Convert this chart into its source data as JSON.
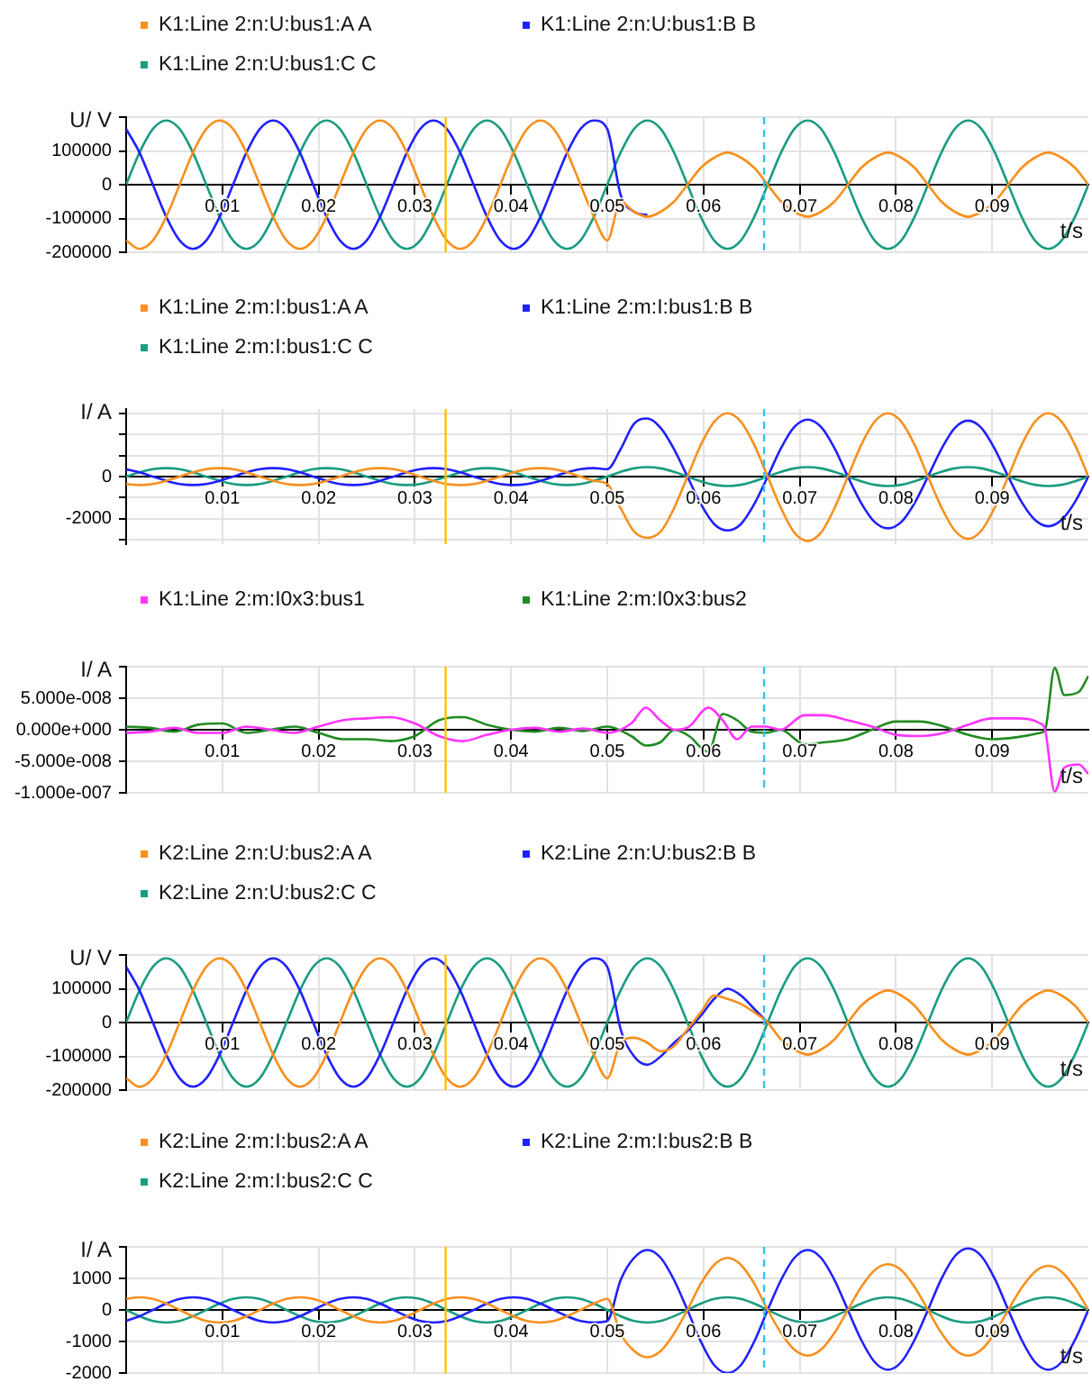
{
  "chart_data": [
    {
      "type": "line",
      "xlabel": "t/s",
      "ylabel": "U/ V",
      "legend": "top left",
      "grid": true,
      "marker": "none",
      "xlim": [
        0,
        0.1
      ],
      "xticks": [
        0.01,
        0.02,
        0.03,
        0.04,
        0.05,
        0.06,
        0.07,
        0.08,
        0.09
      ],
      "ylim": [
        -200000,
        200000
      ],
      "yticks": [
        -200000,
        -100000,
        0,
        100000,
        {
          "value": 200000,
          "label": null
        }
      ],
      "ref_lines": [
        {
          "axis": "x",
          "value": 0.0332,
          "color": "#ffc000"
        },
        {
          "axis": "x",
          "value": 0.0663,
          "color": "#33c3f0",
          "line_style": "dashed"
        }
      ],
      "x": [
        0,
        0.00139,
        0.00278,
        0.00417,
        0.00556,
        0.00694,
        0.00833,
        0.00972,
        0.01111,
        0.0125,
        0.01389,
        0.01528,
        0.01667,
        0.01806,
        0.01944,
        0.02083,
        0.02222,
        0.02361,
        0.025,
        0.02639,
        0.02778,
        0.02917,
        0.03056,
        0.03194,
        0.03333,
        0.03472,
        0.03611,
        0.0375,
        0.03889,
        0.04028,
        0.04167,
        0.04306,
        0.04444,
        0.04583,
        0.04722,
        0.04861,
        0.05,
        0.05139,
        0.05278,
        0.05417,
        0.05556,
        0.05694,
        0.05833,
        0.05972,
        0.06111,
        0.0625,
        0.06389,
        0.06528,
        0.06667,
        0.06806,
        0.06944,
        0.07083,
        0.07222,
        0.07361,
        0.075,
        0.07639,
        0.07778,
        0.07917,
        0.08056,
        0.08194,
        0.08333,
        0.08472,
        0.08611,
        0.0875,
        0.08889,
        0.09028,
        0.09167,
        0.09306,
        0.09444,
        0.09583,
        0.09722,
        0.09861,
        0.1
      ],
      "series": [
        {
          "name": "K1:Line 2:n:U:bus1:A A",
          "color": "#f7901e",
          "values": [
            -165000,
            -190000,
            -165000,
            -95000,
            0,
            95000,
            165000,
            190000,
            165000,
            95000,
            0,
            -95000,
            -165000,
            -190000,
            -165000,
            -95000,
            0,
            95000,
            165000,
            190000,
            165000,
            95000,
            0,
            -95000,
            -165000,
            -190000,
            -165000,
            -95000,
            0,
            95000,
            165000,
            190000,
            165000,
            95000,
            0,
            -95000,
            -165000,
            -50000,
            -80000,
            -95000,
            -80000,
            -50000,
            0,
            50000,
            80000,
            95000,
            80000,
            50000,
            0,
            -50000,
            -80000,
            -95000,
            -80000,
            -50000,
            0,
            50000,
            80000,
            95000,
            80000,
            50000,
            0,
            -50000,
            -80000,
            -95000,
            -80000,
            -50000,
            0,
            50000,
            80000,
            95000,
            80000,
            50000,
            0
          ]
        },
        {
          "name": "K1:Line 2:n:U:bus1:B B",
          "color": "#2020ff",
          "values": [
            165000,
            95000,
            0,
            -95000,
            -165000,
            -190000,
            -165000,
            -95000,
            0,
            95000,
            165000,
            190000,
            165000,
            95000,
            0,
            -95000,
            -165000,
            -190000,
            -165000,
            -95000,
            0,
            95000,
            165000,
            190000,
            165000,
            95000,
            0,
            -95000,
            -165000,
            -190000,
            -165000,
            -95000,
            0,
            95000,
            165000,
            190000,
            165000,
            -30000,
            -80000,
            -90000,
            null,
            null,
            null,
            null,
            null,
            null,
            null,
            null,
            null,
            null,
            null,
            null,
            null,
            null,
            null,
            null,
            null,
            null,
            null,
            null,
            null,
            null,
            null,
            null,
            null,
            null,
            null,
            null,
            null,
            null,
            null,
            null,
            null
          ]
        },
        {
          "name": "K1:Line 2:n:U:bus1:C C",
          "color": "#1a9c80",
          "values": [
            0,
            95000,
            165000,
            190000,
            165000,
            95000,
            0,
            -95000,
            -165000,
            -190000,
            -165000,
            -95000,
            0,
            95000,
            165000,
            190000,
            165000,
            95000,
            0,
            -95000,
            -165000,
            -190000,
            -165000,
            -95000,
            0,
            95000,
            165000,
            190000,
            165000,
            95000,
            0,
            -95000,
            -165000,
            -190000,
            -165000,
            -95000,
            0,
            95000,
            165000,
            190000,
            165000,
            95000,
            0,
            -95000,
            -165000,
            -190000,
            -165000,
            -95000,
            0,
            95000,
            165000,
            190000,
            165000,
            95000,
            0,
            -95000,
            -165000,
            -190000,
            -165000,
            -95000,
            0,
            95000,
            165000,
            190000,
            165000,
            95000,
            0,
            -95000,
            -165000,
            -190000,
            -165000,
            -95000,
            0
          ]
        }
      ]
    },
    {
      "type": "line",
      "xlabel": "t/s",
      "ylabel": "I/ A",
      "legend": "top left",
      "grid": true,
      "marker": "none",
      "xlim": [
        0,
        0.1
      ],
      "xticks": [
        0.01,
        0.02,
        0.03,
        0.04,
        0.05,
        0.06,
        0.07,
        0.08,
        0.09
      ],
      "ylim": [
        -3200,
        3200
      ],
      "yticks": [
        {
          "value": -3000,
          "label": null
        },
        -2000,
        {
          "value": -1000,
          "label": null
        },
        0,
        {
          "value": 1000,
          "label": null
        },
        {
          "value": 2000,
          "label": null
        },
        {
          "value": 3000,
          "label": null
        }
      ],
      "ref_lines": [
        {
          "axis": "x",
          "value": 0.0332,
          "color": "#ffc000"
        },
        {
          "axis": "x",
          "value": 0.0663,
          "color": "#33c3f0",
          "line_style": "dashed"
        }
      ],
      "x": [
        0,
        0.00139,
        0.00278,
        0.00417,
        0.00556,
        0.00694,
        0.00833,
        0.00972,
        0.01111,
        0.0125,
        0.01389,
        0.01528,
        0.01667,
        0.01806,
        0.01944,
        0.02083,
        0.02222,
        0.02361,
        0.025,
        0.02639,
        0.02778,
        0.02917,
        0.03056,
        0.03194,
        0.03333,
        0.03472,
        0.03611,
        0.0375,
        0.03889,
        0.04028,
        0.04167,
        0.04306,
        0.04444,
        0.04583,
        0.04722,
        0.04861,
        0.05,
        0.05139,
        0.05278,
        0.05417,
        0.05556,
        0.05694,
        0.05833,
        0.05972,
        0.06111,
        0.0625,
        0.06389,
        0.06528,
        0.06667,
        0.06806,
        0.06944,
        0.07083,
        0.07222,
        0.07361,
        0.075,
        0.07639,
        0.07778,
        0.07917,
        0.08056,
        0.08194,
        0.08333,
        0.08472,
        0.08611,
        0.0875,
        0.08889,
        0.09028,
        0.09167,
        0.09306,
        0.09444,
        0.09583,
        0.09722,
        0.09861,
        0.1
      ],
      "series": [
        {
          "name": "K1:Line 2:m:I:bus1:A A",
          "color": "#f7901e",
          "values": [
            -350,
            -400,
            -350,
            -200,
            0,
            200,
            350,
            400,
            350,
            200,
            0,
            -200,
            -350,
            -400,
            -350,
            -200,
            0,
            200,
            350,
            400,
            350,
            200,
            0,
            -200,
            -350,
            -400,
            -350,
            -200,
            0,
            200,
            350,
            400,
            350,
            200,
            0,
            -200,
            -350,
            -1500,
            -2600,
            -2900,
            -2600,
            -1500,
            0,
            1500,
            2600,
            3000,
            2600,
            1500,
            0,
            -1500,
            -2650,
            -3050,
            -2650,
            -1500,
            0,
            1500,
            2600,
            3000,
            2600,
            1500,
            0,
            -1450,
            -2550,
            -2950,
            -2550,
            -1450,
            0,
            1500,
            2600,
            3000,
            2600,
            1500,
            0
          ]
        },
        {
          "name": "K1:Line 2:m:I:bus1:B B",
          "color": "#2020ff",
          "values": [
            350,
            200,
            0,
            -200,
            -350,
            -400,
            -350,
            -200,
            0,
            200,
            350,
            400,
            350,
            200,
            0,
            -200,
            -350,
            -400,
            -350,
            -200,
            0,
            200,
            350,
            400,
            350,
            200,
            0,
            -200,
            -350,
            -400,
            -350,
            -200,
            0,
            200,
            350,
            400,
            350,
            1300,
            2500,
            2750,
            2300,
            1300,
            0,
            -1300,
            -2250,
            -2550,
            -2250,
            -1300,
            0,
            1350,
            2350,
            2700,
            2350,
            1350,
            0,
            -1250,
            -2150,
            -2450,
            -2150,
            -1250,
            0,
            1300,
            2300,
            2650,
            2300,
            1300,
            0,
            -1200,
            -2050,
            -2350,
            -2050,
            -1200,
            0
          ]
        },
        {
          "name": "K1:Line 2:m:I:bus1:C C",
          "color": "#1a9c80",
          "values": [
            0,
            200,
            350,
            400,
            350,
            200,
            0,
            -200,
            -350,
            -400,
            -350,
            -200,
            0,
            200,
            350,
            400,
            350,
            200,
            0,
            -200,
            -350,
            -400,
            -350,
            -200,
            0,
            200,
            350,
            400,
            350,
            200,
            0,
            -200,
            -350,
            -400,
            -350,
            -200,
            0,
            225,
            390,
            450,
            390,
            225,
            0,
            -225,
            -390,
            -450,
            -390,
            -225,
            0,
            225,
            390,
            450,
            390,
            225,
            0,
            -225,
            -390,
            -450,
            -390,
            -225,
            0,
            225,
            390,
            450,
            390,
            225,
            0,
            -225,
            -390,
            -450,
            -390,
            -225,
            0
          ]
        }
      ]
    },
    {
      "type": "line",
      "xlabel": "t/s",
      "ylabel": "I/ A",
      "legend": "top left",
      "grid": true,
      "marker": "none",
      "xlim": [
        0,
        0.1
      ],
      "xticks": [
        0.01,
        0.02,
        0.03,
        0.04,
        0.05,
        0.06,
        0.07,
        0.08,
        0.09
      ],
      "ylim": [
        -1e-07,
        1e-07
      ],
      "yticks": [
        {
          "value": -1e-07,
          "label": "-1.000e-007"
        },
        {
          "value": -5e-08,
          "label": "-5.000e-008"
        },
        {
          "value": 0,
          "label": "0.000e+000"
        },
        {
          "value": 5e-08,
          "label": "5.000e-008"
        },
        {
          "value": 1e-07,
          "label": null
        }
      ],
      "ref_lines": [
        {
          "axis": "x",
          "value": 0.0332,
          "color": "#ffc000"
        },
        {
          "axis": "x",
          "value": 0.0663,
          "color": "#33c3f0",
          "line_style": "dashed"
        }
      ],
      "x": [
        0,
        0.0025,
        0.005,
        0.0075,
        0.01,
        0.0125,
        0.015,
        0.0175,
        0.02,
        0.0225,
        0.025,
        0.0275,
        0.03,
        0.0325,
        0.035,
        0.0375,
        0.04,
        0.0425,
        0.045,
        0.0475,
        0.05,
        0.0525,
        0.054,
        0.0555,
        0.057,
        0.0585,
        0.0605,
        0.062,
        0.0635,
        0.065,
        0.0665,
        0.068,
        0.0705,
        0.0725,
        0.075,
        0.0775,
        0.08,
        0.0825,
        0.085,
        0.0875,
        0.09,
        0.0925,
        0.095,
        0.0955,
        0.0965,
        0.0975,
        0.099,
        0.1
      ],
      "series": [
        {
          "name": "K1:Line 2:m:I0x3:bus1",
          "color": "#ff33ff",
          "values": [
            -5e-09,
            -3e-09,
            3e-09,
            -5e-09,
            -5e-09,
            5e-09,
            0,
            -5e-09,
            5e-09,
            1.5e-08,
            1.8e-08,
            2e-08,
            1e-08,
            -1e-08,
            -1.8e-08,
            -8e-09,
            0,
            3e-09,
            -3e-09,
            2e-09,
            -5e-09,
            1e-08,
            3.5e-08,
            1.5e-08,
            0,
            5e-09,
            3.5e-08,
            1.5e-08,
            -1.5e-08,
            5e-09,
            5e-09,
            0,
            2.3e-08,
            2.3e-08,
            1.5e-08,
            5e-09,
            -8e-09,
            -1e-08,
            -5e-09,
            8e-09,
            1.8e-08,
            1.8e-08,
            1e-08,
            0,
            -9.8e-08,
            -6e-08,
            -5.5e-08,
            -7e-08
          ]
        },
        {
          "name": "K1:Line 2:m:I0x3:bus2",
          "color": "#228b22",
          "values": [
            5e-09,
            3e-09,
            -3e-09,
            8e-09,
            1e-08,
            -5e-09,
            0,
            5e-09,
            -5e-09,
            -1.5e-08,
            -1.5e-08,
            -1.8e-08,
            -1e-08,
            1.5e-08,
            2e-08,
            8e-09,
            0,
            -3e-09,
            3e-09,
            -2e-09,
            5e-09,
            -1e-08,
            -2.5e-08,
            -2e-08,
            0,
            -1e-08,
            -3.5e-08,
            2.5e-08,
            1.5e-08,
            -3e-09,
            -5e-09,
            0,
            -2.3e-08,
            -2e-08,
            -1.5e-08,
            0,
            1.3e-08,
            1.3e-08,
            5e-09,
            -8e-09,
            -1.5e-08,
            -1.2e-08,
            -5e-09,
            0,
            9.8e-08,
            5.5e-08,
            6e-08,
            8.5e-08
          ]
        }
      ]
    },
    {
      "type": "line",
      "xlabel": "t/s",
      "ylabel": "U/ V",
      "legend": "top left",
      "grid": true,
      "marker": "none",
      "xlim": [
        0,
        0.1
      ],
      "xticks": [
        0.01,
        0.02,
        0.03,
        0.04,
        0.05,
        0.06,
        0.07,
        0.08,
        0.09
      ],
      "ylim": [
        -200000,
        200000
      ],
      "yticks": [
        -200000,
        -100000,
        0,
        100000,
        {
          "value": 200000,
          "label": null
        }
      ],
      "ref_lines": [
        {
          "axis": "x",
          "value": 0.0332,
          "color": "#ffc000"
        },
        {
          "axis": "x",
          "value": 0.0663,
          "color": "#33c3f0",
          "line_style": "dashed"
        }
      ],
      "x": [
        0,
        0.00139,
        0.00278,
        0.00417,
        0.00556,
        0.00694,
        0.00833,
        0.00972,
        0.01111,
        0.0125,
        0.01389,
        0.01528,
        0.01667,
        0.01806,
        0.01944,
        0.02083,
        0.02222,
        0.02361,
        0.025,
        0.02639,
        0.02778,
        0.02917,
        0.03056,
        0.03194,
        0.03333,
        0.03472,
        0.03611,
        0.0375,
        0.03889,
        0.04028,
        0.04167,
        0.04306,
        0.04444,
        0.04583,
        0.04722,
        0.04861,
        0.05,
        0.05139,
        0.05278,
        0.05417,
        0.05556,
        0.05694,
        0.05833,
        0.05972,
        0.06111,
        0.0625,
        0.06389,
        0.06528,
        0.06667,
        0.06806,
        0.06944,
        0.07083,
        0.07222,
        0.07361,
        0.075,
        0.07639,
        0.07778,
        0.07917,
        0.08056,
        0.08194,
        0.08333,
        0.08472,
        0.08611,
        0.0875,
        0.08889,
        0.09028,
        0.09167,
        0.09306,
        0.09444,
        0.09583,
        0.09722,
        0.09861,
        0.1
      ],
      "series": [
        {
          "name": "K2:Line 2:n:U:bus2:A A",
          "color": "#f7901e",
          "values": [
            -165000,
            -190000,
            -165000,
            -95000,
            0,
            95000,
            165000,
            190000,
            165000,
            95000,
            0,
            -95000,
            -165000,
            -190000,
            -165000,
            -95000,
            0,
            95000,
            165000,
            190000,
            165000,
            95000,
            0,
            -95000,
            -165000,
            -190000,
            -165000,
            -95000,
            0,
            95000,
            165000,
            190000,
            165000,
            95000,
            0,
            -95000,
            -165000,
            -60000,
            -45000,
            -60000,
            -85000,
            -70000,
            -20000,
            30000,
            80000,
            70000,
            55000,
            30000,
            0,
            -50000,
            -80000,
            -95000,
            -80000,
            -50000,
            0,
            50000,
            80000,
            95000,
            80000,
            50000,
            0,
            -50000,
            -80000,
            -95000,
            -80000,
            -50000,
            0,
            50000,
            80000,
            95000,
            80000,
            50000,
            0
          ]
        },
        {
          "name": "K2:Line 2:n:U:bus2:B B",
          "color": "#2020ff",
          "values": [
            165000,
            95000,
            0,
            -95000,
            -165000,
            -190000,
            -165000,
            -95000,
            0,
            95000,
            165000,
            190000,
            165000,
            95000,
            0,
            -95000,
            -165000,
            -190000,
            -165000,
            -95000,
            0,
            95000,
            165000,
            190000,
            165000,
            95000,
            0,
            -95000,
            -165000,
            -190000,
            -165000,
            -95000,
            0,
            95000,
            165000,
            190000,
            165000,
            -20000,
            -100000,
            -125000,
            -100000,
            -60000,
            -25000,
            20000,
            70000,
            100000,
            80000,
            40000,
            0,
            null,
            null,
            null,
            null,
            null,
            null,
            null,
            null,
            null,
            null,
            null,
            null,
            null,
            null,
            null,
            null,
            null,
            null,
            null,
            null,
            null,
            null,
            null,
            null
          ]
        },
        {
          "name": "K2:Line 2:n:U:bus2:C C",
          "color": "#1a9c80",
          "values": [
            0,
            95000,
            165000,
            190000,
            165000,
            95000,
            0,
            -95000,
            -165000,
            -190000,
            -165000,
            -95000,
            0,
            95000,
            165000,
            190000,
            165000,
            95000,
            0,
            -95000,
            -165000,
            -190000,
            -165000,
            -95000,
            0,
            95000,
            165000,
            190000,
            165000,
            95000,
            0,
            -95000,
            -165000,
            -190000,
            -165000,
            -95000,
            0,
            95000,
            165000,
            190000,
            165000,
            95000,
            0,
            -95000,
            -165000,
            -190000,
            -165000,
            -95000,
            0,
            95000,
            165000,
            190000,
            165000,
            95000,
            0,
            -95000,
            -165000,
            -190000,
            -165000,
            -95000,
            0,
            95000,
            165000,
            190000,
            165000,
            95000,
            0,
            -95000,
            -165000,
            -190000,
            -165000,
            -95000,
            0
          ]
        }
      ]
    },
    {
      "type": "line",
      "xlabel": "t/s",
      "ylabel": "I/ A",
      "legend": "top left",
      "grid": true,
      "marker": "none",
      "xlim": [
        0,
        0.1
      ],
      "xticks": [
        0.01,
        0.02,
        0.03,
        0.04,
        0.05,
        0.06,
        0.07,
        0.08,
        0.09
      ],
      "ylim": [
        -2000,
        2000
      ],
      "yticks": [
        -2000,
        -1000,
        0,
        1000,
        {
          "value": 2000,
          "label": null
        }
      ],
      "ref_lines": [
        {
          "axis": "x",
          "value": 0.0332,
          "color": "#ffc000"
        },
        {
          "axis": "x",
          "value": 0.0663,
          "color": "#33c3f0",
          "line_style": "dashed"
        }
      ],
      "x": [
        0,
        0.00139,
        0.00278,
        0.00417,
        0.00556,
        0.00694,
        0.00833,
        0.00972,
        0.01111,
        0.0125,
        0.01389,
        0.01528,
        0.01667,
        0.01806,
        0.01944,
        0.02083,
        0.02222,
        0.02361,
        0.025,
        0.02639,
        0.02778,
        0.02917,
        0.03056,
        0.03194,
        0.03333,
        0.03472,
        0.03611,
        0.0375,
        0.03889,
        0.04028,
        0.04167,
        0.04306,
        0.04444,
        0.04583,
        0.04722,
        0.04861,
        0.05,
        0.05139,
        0.05278,
        0.05417,
        0.05556,
        0.05694,
        0.05833,
        0.05972,
        0.06111,
        0.0625,
        0.06389,
        0.06528,
        0.06667,
        0.06806,
        0.06944,
        0.07083,
        0.07222,
        0.07361,
        0.075,
        0.07639,
        0.07778,
        0.07917,
        0.08056,
        0.08194,
        0.08333,
        0.08472,
        0.08611,
        0.0875,
        0.08889,
        0.09028,
        0.09167,
        0.09306,
        0.09444,
        0.09583,
        0.09722,
        0.09861,
        0.1
      ],
      "series": [
        {
          "name": "K2:Line 2:m:I:bus2:A A",
          "color": "#f7901e",
          "values": [
            350,
            400,
            350,
            200,
            0,
            -200,
            -350,
            -400,
            -350,
            -200,
            0,
            200,
            350,
            400,
            350,
            200,
            0,
            -200,
            -350,
            -400,
            -350,
            -200,
            0,
            200,
            350,
            400,
            350,
            200,
            0,
            -200,
            -350,
            -400,
            -350,
            -200,
            0,
            200,
            350,
            -750,
            -1300,
            -1500,
            -1300,
            -750,
            0,
            830,
            1430,
            1650,
            1430,
            830,
            0,
            -730,
            -1260,
            -1450,
            -1260,
            -730,
            0,
            730,
            1260,
            1450,
            1260,
            730,
            0,
            -730,
            -1260,
            -1450,
            -1260,
            -730,
            0,
            700,
            1210,
            1400,
            1210,
            700,
            0
          ]
        },
        {
          "name": "K2:Line 2:m:I:bus2:B B",
          "color": "#2020ff",
          "values": [
            -350,
            -200,
            0,
            200,
            350,
            400,
            350,
            200,
            0,
            -200,
            -350,
            -400,
            -350,
            -200,
            0,
            200,
            350,
            400,
            350,
            200,
            0,
            -200,
            -350,
            -400,
            -350,
            -200,
            0,
            200,
            350,
            400,
            350,
            200,
            0,
            -200,
            -350,
            -400,
            -350,
            950,
            1650,
            1900,
            1650,
            950,
            0,
            -1000,
            -1750,
            -2000,
            -1750,
            -1000,
            0,
            950,
            1650,
            1900,
            1650,
            950,
            0,
            -950,
            -1650,
            -1900,
            -1650,
            -950,
            0,
            980,
            1700,
            1950,
            1700,
            980,
            0,
            -950,
            -1650,
            -1900,
            -1650,
            -950,
            0
          ]
        },
        {
          "name": "K2:Line 2:m:I:bus2:C C",
          "color": "#1a9c80",
          "values": [
            0,
            -200,
            -350,
            -400,
            -350,
            -200,
            0,
            200,
            350,
            400,
            350,
            200,
            0,
            -200,
            -350,
            -400,
            -350,
            -200,
            0,
            200,
            350,
            400,
            350,
            200,
            0,
            -200,
            -350,
            -400,
            -350,
            -200,
            0,
            200,
            350,
            400,
            350,
            200,
            0,
            -200,
            -350,
            -400,
            -350,
            -200,
            0,
            200,
            350,
            400,
            350,
            200,
            0,
            -200,
            -350,
            -400,
            -350,
            -200,
            0,
            200,
            350,
            400,
            350,
            200,
            0,
            -200,
            -350,
            -400,
            -350,
            -200,
            0,
            200,
            350,
            400,
            350,
            200,
            0
          ]
        }
      ]
    }
  ]
}
